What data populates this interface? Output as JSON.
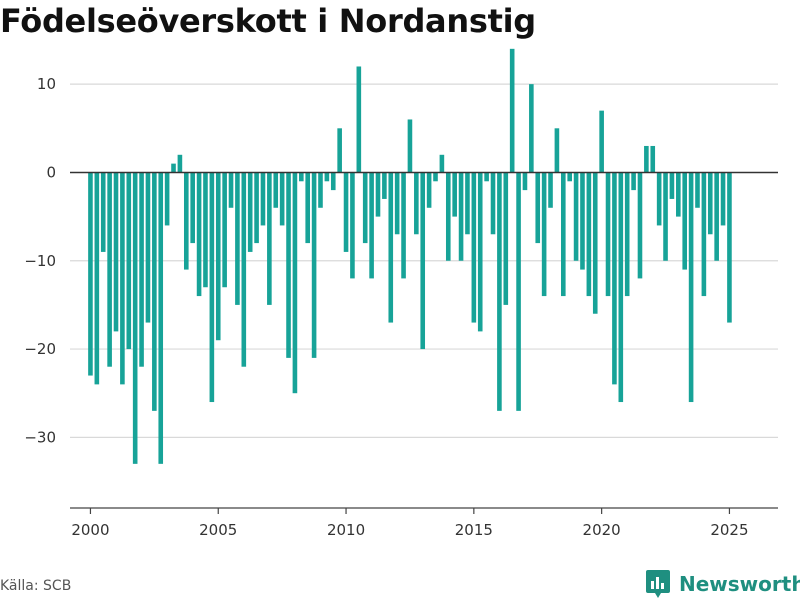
{
  "title": "Födelseöverskott i Nordanstig",
  "source": "Källa: SCB",
  "brand": {
    "name": "Newsworthy",
    "icon": "newsworthy-logo-icon"
  },
  "colors": {
    "bar": "#17a398",
    "grid": "#d9d9d9",
    "zero_line": "#333333",
    "brand": "#1f8f80"
  },
  "chart_data": {
    "type": "bar",
    "title": "Födelseöverskott i Nordanstig",
    "frequency": "quarterly",
    "x_start": 2000,
    "xlim": [
      1999.2,
      2026.9
    ],
    "x_ticks": [
      2000,
      2005,
      2010,
      2015,
      2020,
      2025
    ],
    "y_ticks": [
      10,
      0,
      -10,
      -20,
      -30
    ],
    "y_tick_labels": [
      "10",
      "0",
      "−10",
      "−20",
      "−30"
    ],
    "ylim": [
      -38,
      15
    ],
    "grid": true,
    "values": [
      -23,
      -24,
      -9,
      -22,
      -18,
      -24,
      -20,
      -33,
      -22,
      -17,
      -27,
      -33,
      -6,
      1,
      2,
      -11,
      -8,
      -14,
      -13,
      -26,
      -19,
      -13,
      -4,
      -15,
      -22,
      -9,
      -8,
      -6,
      -15,
      -4,
      -6,
      -21,
      -25,
      -1,
      -8,
      -21,
      -4,
      -1,
      -2,
      5,
      -9,
      -12,
      12,
      -8,
      -12,
      -5,
      -3,
      -17,
      -7,
      -12,
      6,
      -7,
      -20,
      -4,
      -1,
      2,
      -10,
      -5,
      -10,
      -7,
      -17,
      -18,
      -1,
      -7,
      -27,
      -15,
      14,
      -27,
      -2,
      10,
      -8,
      -14,
      -4,
      5,
      -14,
      -1,
      -10,
      -11,
      -14,
      -16,
      7,
      -14,
      -24,
      -26,
      -14,
      -2,
      -12,
      3,
      3,
      -6,
      -10,
      -3,
      -5,
      -11,
      -26,
      -4,
      -14,
      -7,
      -10,
      -6,
      -17
    ]
  }
}
